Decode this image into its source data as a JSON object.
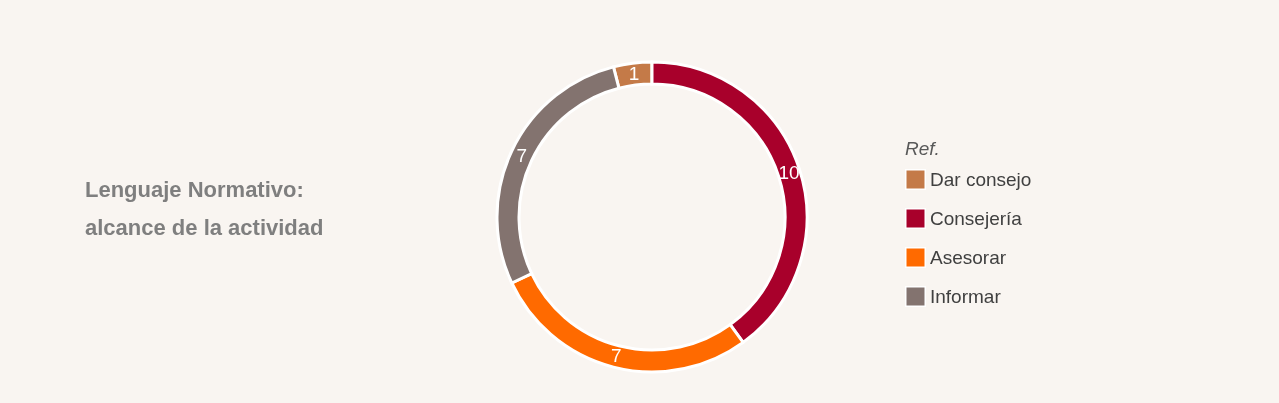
{
  "chart_data": {
    "type": "donut",
    "title": "Lenguaje Normativo:\nalcance de la actividad",
    "legend_title": "Ref.",
    "categories": [
      "Dar consejo",
      "Consejería",
      "Asesorar",
      "Informar"
    ],
    "values": [
      1,
      10,
      7,
      7
    ],
    "colors": [
      "#c47a48",
      "#a8002b",
      "#ff6a00",
      "#83736f"
    ],
    "data_labels": true,
    "legend": "right"
  }
}
